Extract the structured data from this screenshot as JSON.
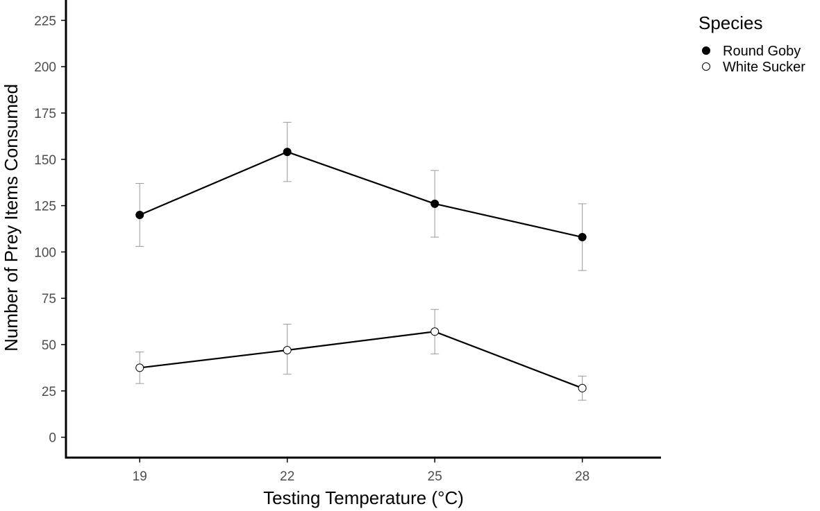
{
  "chart_data": {
    "type": "line",
    "title": "",
    "xlabel": "Testing Temperature (°C)",
    "ylabel": "Number of Prey Items Consumed",
    "x": [
      19,
      22,
      25,
      28
    ],
    "x_tick_labels": [
      "19",
      "22",
      "25",
      "28"
    ],
    "y_ticks": [
      0,
      25,
      50,
      75,
      100,
      125,
      150,
      175,
      200,
      225
    ],
    "y_tick_labels": [
      "0",
      "25",
      "50",
      "75",
      "100",
      "125",
      "150",
      "175",
      "200",
      "225"
    ],
    "xlim": [
      17.5,
      29.6
    ],
    "ylim": [
      -11,
      236
    ],
    "grid": false,
    "legend": {
      "title": "Species",
      "position": "top-right"
    },
    "series": [
      {
        "name": "Round Goby",
        "marker": "filled-circle",
        "values": [
          120,
          154,
          126,
          108
        ],
        "error_low": [
          103,
          138,
          108,
          90
        ],
        "error_high": [
          137,
          170,
          144,
          126
        ]
      },
      {
        "name": "White Sucker",
        "marker": "open-circle",
        "values": [
          37.5,
          47,
          57,
          26.5
        ],
        "error_low": [
          29,
          34,
          45,
          20
        ],
        "error_high": [
          46,
          61,
          69,
          33
        ]
      }
    ],
    "colors": {
      "line": "#000000",
      "errorbar": "#999999",
      "filled_marker": "#000000",
      "open_marker_fill": "#ffffff",
      "axis": "#000000",
      "tick_label": "#4d4d4d"
    }
  }
}
